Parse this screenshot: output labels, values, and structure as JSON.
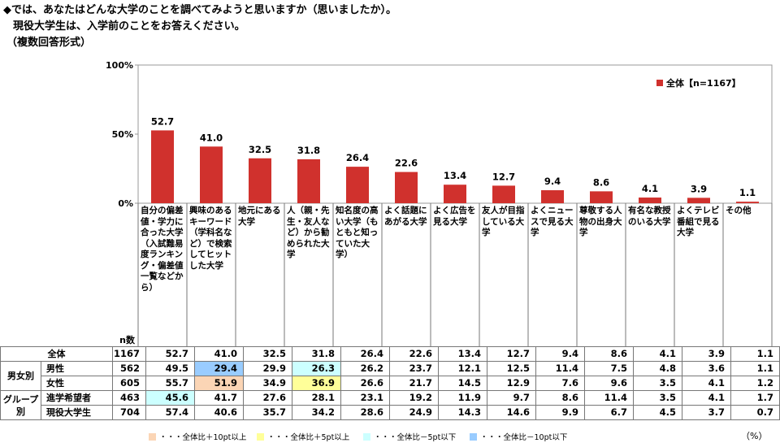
{
  "question": {
    "line1": "◆では、あなたはどんな大学のことを調べてみようと思いますか（思いましたか）。",
    "line2": "現役大学生は、入学前のことをお答えください。",
    "line3": "（複数回答形式）"
  },
  "percent_unit": "（%）",
  "n_label": "n数",
  "chart_data": {
    "type": "bar",
    "title": "",
    "series": [
      {
        "name": "全体【n=1167】",
        "color": "#d0312d",
        "values": [
          52.7,
          41.0,
          32.5,
          31.8,
          26.4,
          22.6,
          13.4,
          12.7,
          9.4,
          8.6,
          4.1,
          3.9,
          1.1
        ]
      }
    ],
    "categories": [
      "自分の偏差値・学力に合った大学（入試難易度ランキング・偏差値一覧などから）",
      "興味のあるキーワード（学科名など）で検索してヒットした大学",
      "地元にある大学",
      "人（親・先生・友人など）から勧められた大学",
      "知名度の高い大学（もともと知っていた大学）",
      "よく話題にあがる大学",
      "よく広告を見る大学",
      "友人が目指している大学",
      "よくニュースで見る大学",
      "尊敬する人物の出身大学",
      "有名な教授のいる大学",
      "よくテレビ番組で見る大学",
      "その他"
    ],
    "value_labels": [
      "52.7",
      "41.0",
      "32.5",
      "31.8",
      "26.4",
      "22.6",
      "13.4",
      "12.7",
      "9.4",
      "8.6",
      "4.1",
      "3.9",
      "1.1"
    ],
    "y_ticks": [
      "0%",
      "50%",
      "100%"
    ],
    "ylim": [
      0,
      100
    ],
    "legend": "全体【n=1167】",
    "legend_position": "top-right"
  },
  "table": {
    "rows": [
      {
        "group": "",
        "label": "全体",
        "n": "1167",
        "values": [
          "52.7",
          "41.0",
          "32.5",
          "31.8",
          "26.4",
          "22.6",
          "13.4",
          "12.7",
          "9.4",
          "8.6",
          "4.1",
          "3.9",
          "1.1"
        ],
        "hl": [
          "",
          "",
          "",
          "",
          "",
          "",
          "",
          "",
          "",
          "",
          "",
          "",
          ""
        ]
      },
      {
        "group": "男女別",
        "label": "男性",
        "n": "562",
        "values": [
          "49.5",
          "29.4",
          "29.9",
          "26.3",
          "26.2",
          "23.7",
          "12.1",
          "12.5",
          "11.4",
          "7.5",
          "4.8",
          "3.6",
          "1.1"
        ],
        "hl": [
          "",
          "blue",
          "",
          "lightblue",
          "",
          "",
          "",
          "",
          "",
          "",
          "",
          "",
          ""
        ]
      },
      {
        "group": "",
        "label": "女性",
        "n": "605",
        "values": [
          "55.7",
          "51.9",
          "34.9",
          "36.9",
          "26.6",
          "21.7",
          "14.5",
          "12.9",
          "7.6",
          "9.6",
          "3.5",
          "4.1",
          "1.2"
        ],
        "hl": [
          "",
          "orange",
          "",
          "yellow",
          "",
          "",
          "",
          "",
          "",
          "",
          "",
          "",
          ""
        ]
      },
      {
        "group": "グループ別",
        "label": "進学希望者",
        "n": "463",
        "values": [
          "45.6",
          "41.7",
          "27.6",
          "28.1",
          "23.1",
          "19.2",
          "11.9",
          "9.7",
          "8.6",
          "11.4",
          "3.5",
          "4.1",
          "1.7"
        ],
        "hl": [
          "lightblue",
          "",
          "",
          "",
          "",
          "",
          "",
          "",
          "",
          "",
          "",
          "",
          ""
        ]
      },
      {
        "group": "",
        "label": "現役大学生",
        "n": "704",
        "values": [
          "57.4",
          "40.6",
          "35.7",
          "34.2",
          "28.6",
          "24.9",
          "14.3",
          "14.6",
          "9.9",
          "6.7",
          "4.5",
          "3.7",
          "0.7"
        ],
        "hl": [
          "",
          "",
          "",
          "",
          "",
          "",
          "",
          "",
          "",
          "",
          "",
          "",
          ""
        ]
      }
    ],
    "group_labels": {
      "gender": "男女別",
      "group_line1": "グループ",
      "group_line2": "別"
    }
  },
  "bottom_legend": [
    {
      "text": "・・・全体比＋10pt以上",
      "color": "#fbd5b5"
    },
    {
      "text": "・・・全体比＋5pt以上",
      "color": "#ffff99"
    },
    {
      "text": "・・・全体比－5pt以下",
      "color": "#ccffff"
    },
    {
      "text": "・・・全体比－10pt以下",
      "color": "#99ccff"
    }
  ]
}
